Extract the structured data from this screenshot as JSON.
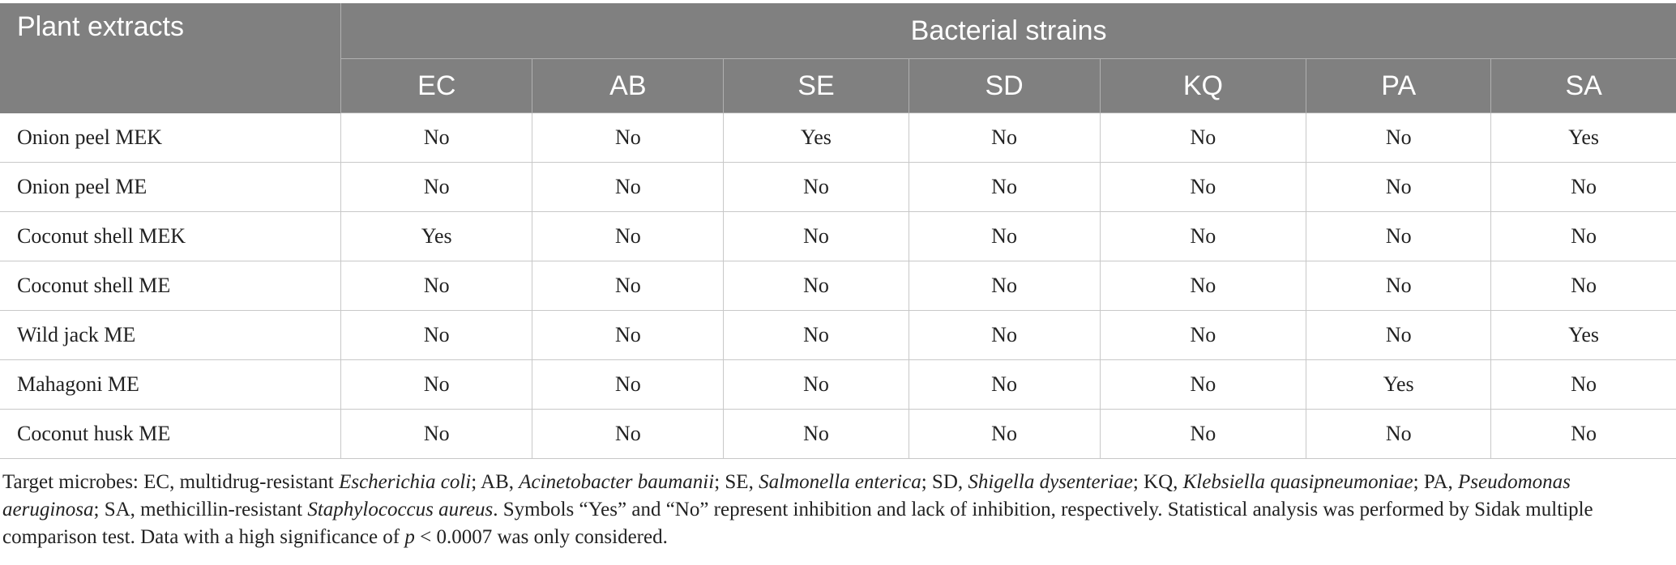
{
  "table": {
    "corner_header": "Plant extracts",
    "group_header": "Bacterial strains",
    "columns": [
      "EC",
      "AB",
      "SE",
      "SD",
      "KQ",
      "PA",
      "SA"
    ],
    "rows": [
      {
        "label": "Onion peel MEK",
        "cells": [
          "No",
          "No",
          "Yes",
          "No",
          "No",
          "No",
          "Yes"
        ]
      },
      {
        "label": "Onion peel ME",
        "cells": [
          "No",
          "No",
          "No",
          "No",
          "No",
          "No",
          "No"
        ]
      },
      {
        "label": "Coconut shell MEK",
        "cells": [
          "Yes",
          "No",
          "No",
          "No",
          "No",
          "No",
          "No"
        ]
      },
      {
        "label": "Coconut shell ME",
        "cells": [
          "No",
          "No",
          "No",
          "No",
          "No",
          "No",
          "No"
        ]
      },
      {
        "label": "Wild jack ME",
        "cells": [
          "No",
          "No",
          "No",
          "No",
          "No",
          "No",
          "Yes"
        ]
      },
      {
        "label": "Mahagoni ME",
        "cells": [
          "No",
          "No",
          "No",
          "No",
          "No",
          "Yes",
          "No"
        ]
      },
      {
        "label": "Coconut husk ME",
        "cells": [
          "No",
          "No",
          "No",
          "No",
          "No",
          "No",
          "No"
        ]
      }
    ]
  },
  "footnote": {
    "t1": "Target microbes: EC, multidrug-resistant ",
    "t2": "Escherichia coli",
    "t3": "; AB, ",
    "t4": "Acinetobacter baumanii",
    "t5": "; SE, ",
    "t6": "Salmonella enterica",
    "t7": "; SD, ",
    "t8": "Shigella dysenteriae",
    "t9": "; KQ, ",
    "t10": "Klebsiella quasipneumoniae",
    "t11": "; PA, ",
    "t12": "Pseudomonas aeruginosa",
    "t13": "; SA, methicillin-resistant ",
    "t14": "Staphylococcus aureus",
    "t15": ". Symbols “Yes” and “No” represent inhibition and lack of inhibition, respectively. Statistical analysis was performed by Sidak multiple comparison test. Data with a high significance of ",
    "t16": "p",
    "t17": " < 0.0007 was only considered."
  }
}
